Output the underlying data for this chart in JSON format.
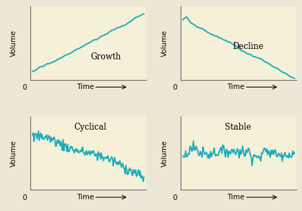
{
  "background_color": "#f5f0d8",
  "outer_background": "#ede8d5",
  "line_color": "#1aacbc",
  "line_width": 1.4,
  "panel_bg": "#f5f0d8",
  "labels": [
    "Growth",
    "Decline",
    "Cyclical",
    "Stable"
  ],
  "ylabel": "Volume",
  "xlabel": "Time",
  "zero_label": "0",
  "font_size_label": 8.5,
  "font_size_axis": 7.5,
  "seed": 7
}
